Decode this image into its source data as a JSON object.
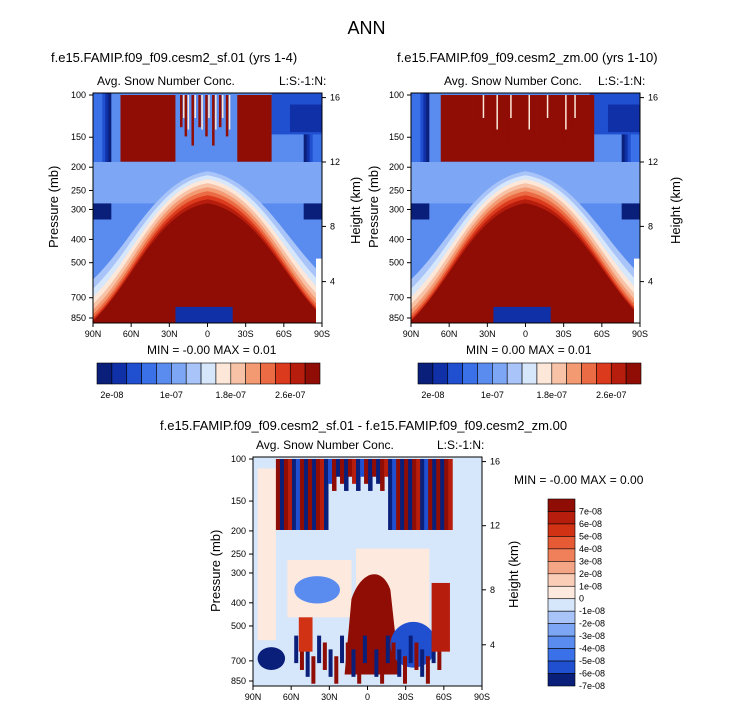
{
  "figure_title": "ANN",
  "chart_data": [
    {
      "type": "heatmap",
      "panel": "top-left",
      "title": "f.e15.FAMIP.f09_f09.cesm2_sf.01 (yrs 1-4)",
      "variable": "Avg. Snow Number Conc.",
      "corner_label": "L:S:-1:N:",
      "ylabel": "Pressure (mb)",
      "ylabel_right": "Height (km)",
      "x_ticks": [
        "90N",
        "60N",
        "30N",
        "0",
        "30S",
        "60S",
        "90S"
      ],
      "y_ticks": [
        "100",
        "150",
        "200",
        "250",
        "300",
        "400",
        "500",
        "700",
        "850"
      ],
      "y_ticks_right": [
        "16",
        "12",
        "8",
        "4"
      ],
      "min_max": "MIN = -0.00 MAX = 0.01",
      "colorbar_labels": [
        "2e-08",
        "1e-07",
        "1.8e-07",
        "2.6e-07"
      ],
      "colors": [
        "#0a1f7a",
        "#1030a8",
        "#2050d0",
        "#3a70e8",
        "#5a8cf0",
        "#7da6f5",
        "#a8c4f8",
        "#d6e6fb",
        "#fde7d8",
        "#f8c2a6",
        "#f39a73",
        "#eb6b44",
        "#db3a1c",
        "#b71d0c",
        "#8f0d05"
      ]
    },
    {
      "type": "heatmap",
      "panel": "top-right",
      "title": "f.e15.FAMIP.f09_f09.cesm2_zm.00 (yrs 1-10)",
      "variable": "Avg. Snow Number Conc.",
      "corner_label": "L:S:-1:N:",
      "ylabel": "Pressure (mb)",
      "ylabel_right": "Height (km)",
      "x_ticks": [
        "90N",
        "60N",
        "30N",
        "0",
        "30S",
        "60S",
        "90S"
      ],
      "y_ticks": [
        "100",
        "150",
        "200",
        "250",
        "300",
        "400",
        "500",
        "700",
        "850"
      ],
      "y_ticks_right": [
        "16",
        "12",
        "8",
        "4"
      ],
      "min_max": "MIN = 0.00 MAX = 0.01",
      "colorbar_labels": [
        "2e-08",
        "1e-07",
        "1.8e-07",
        "2.6e-07"
      ]
    },
    {
      "type": "heatmap",
      "panel": "bottom-difference",
      "title": "f.e15.FAMIP.f09_f09.cesm2_sf.01 - f.e15.FAMIP.f09_f09.cesm2_zm.00",
      "variable": "Avg. Snow Number Conc.",
      "corner_label": "L:S:-1:N:",
      "ylabel": "Pressure (mb)",
      "ylabel_right": "Height (km)",
      "x_ticks": [
        "90N",
        "60N",
        "30N",
        "0",
        "30S",
        "60S",
        "90S"
      ],
      "y_ticks": [
        "100",
        "150",
        "200",
        "250",
        "300",
        "400",
        "500",
        "700",
        "850"
      ],
      "y_ticks_right": [
        "16",
        "12",
        "8",
        "4"
      ],
      "min_max": "MIN = -0.00 MAX = 0.00",
      "colorbar_labels": [
        "7e-08",
        "6e-08",
        "5e-08",
        "4e-08",
        "3e-08",
        "2e-08",
        "1e-08",
        "0",
        "-1e-08",
        "-2e-08",
        "-3e-08",
        "-4e-08",
        "-5e-08",
        "-6e-08",
        "-7e-08"
      ],
      "colors": [
        "#8f0d05",
        "#b71d0c",
        "#d23214",
        "#e65a35",
        "#f0805a",
        "#f4a585",
        "#f9cdb6",
        "#fde9dd",
        "#d6e6fb",
        "#a8c4f8",
        "#7da6f5",
        "#5a8cf0",
        "#3a70e8",
        "#2050d0",
        "#0a1f7a"
      ]
    }
  ]
}
